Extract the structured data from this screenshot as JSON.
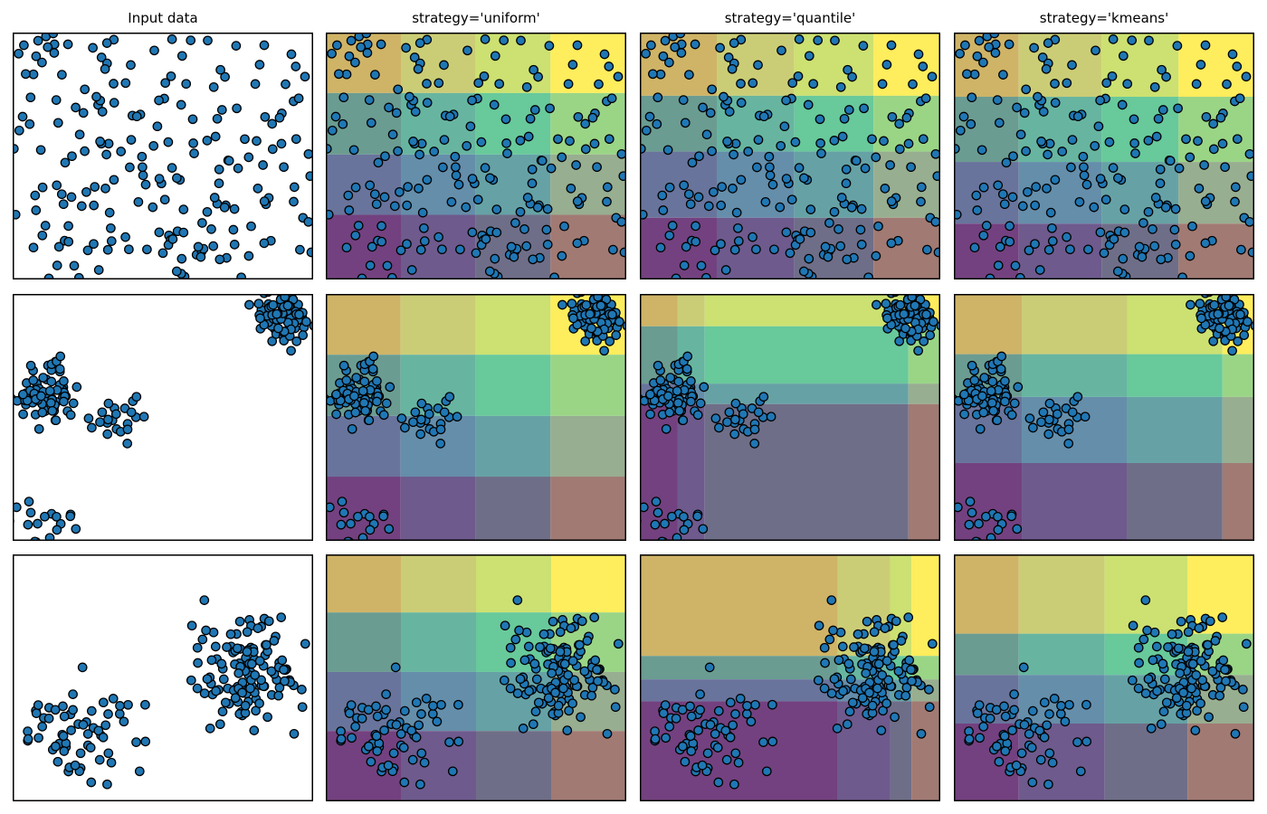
{
  "chart_data": {
    "type": "scatter",
    "description": "Comparison of KBinsDiscretizer binning strategies on three synthetic 2D datasets; each strategy panel shows the same scatter points over a 4x4 grid of discretization bins shaded with two overlapping semi-transparent viridis contour fills (x-feature bins and y-feature bins).",
    "columns": [
      "Input data",
      "strategy='uniform'",
      "strategy='quantile'",
      "strategy='kmeans'"
    ],
    "n_bins_per_feature": 4,
    "colormap": "viridis",
    "coordinates": "All coordinates and bin edges are normalized 0-1 within each panel, origin at top-left (y increases downward).",
    "rows": [
      {
        "name": "uniform random points",
        "points_spec": {
          "type": "uniform",
          "seed": 42,
          "n": 200,
          "x_range": [
            0.0,
            1.0
          ],
          "y_range": [
            0.0,
            1.0
          ]
        },
        "bins": {
          "uniform": {
            "x": [
              0.25,
              0.499,
              0.748
            ],
            "y_top": [
              0.245,
              0.494,
              0.738
            ]
          },
          "quantile": {
            "x": [
              0.256,
              0.514,
              0.778
            ],
            "y_top": [
              0.256,
              0.482,
              0.75
            ]
          },
          "kmeans": {
            "x": [
              0.216,
              0.492,
              0.748
            ],
            "y_top": [
              0.26,
              0.524,
              0.774
            ]
          }
        }
      },
      {
        "name": "three blobs (large top-right, medium left with trail, small bottom-left)",
        "points_spec": {
          "type": "clusters",
          "seed": 1234,
          "clusters": [
            {
              "cx": 0.9,
              "cy": 0.095,
              "sx": 0.055,
              "sy": 0.055,
              "n": 80
            },
            {
              "cx": 0.115,
              "cy": 0.41,
              "sx": 0.05,
              "sy": 0.05,
              "n": 78
            },
            {
              "cx": 0.33,
              "cy": 0.5,
              "sx": 0.05,
              "sy": 0.045,
              "n": 22
            },
            {
              "cx": 0.1,
              "cy": 0.92,
              "sx": 0.05,
              "sy": 0.055,
              "n": 20
            }
          ]
        },
        "bins": {
          "uniform": {
            "x": [
              0.249,
              0.499,
              0.748
            ],
            "y_top": [
              0.246,
              0.494,
              0.74
            ]
          },
          "quantile": {
            "x": [
              0.125,
              0.216,
              0.894
            ],
            "y_top": [
              0.131,
              0.363,
              0.446
            ]
          },
          "kmeans": {
            "x": [
              0.226,
              0.577,
              0.894
            ],
            "y_top": [
              0.244,
              0.417,
              0.685
            ]
          }
        }
      },
      {
        "name": "two blobs (dense right-center, sparse lower-left)",
        "points_spec": {
          "type": "clusters",
          "seed": 99,
          "clusters": [
            {
              "cx": 0.785,
              "cy": 0.455,
              "sx": 0.1,
              "sy": 0.115,
              "n": 130
            },
            {
              "cx": 0.21,
              "cy": 0.72,
              "sx": 0.105,
              "sy": 0.1,
              "n": 65
            }
          ]
        },
        "bins": {
          "uniform": {
            "x": [
              0.25,
              0.5,
              0.75
            ],
            "y_top": [
              0.235,
              0.476,
              0.715
            ]
          },
          "quantile": {
            "x": [
              0.658,
              0.833,
              0.904
            ],
            "y_top": [
              0.411,
              0.506,
              0.595
            ]
          },
          "kmeans": {
            "x": [
              0.216,
              0.502,
              0.778
            ],
            "y_top": [
              0.321,
              0.488,
              0.685
            ]
          }
        }
      }
    ]
  },
  "style": {
    "background": "#ffffff",
    "panel_border_color": "#000000",
    "point_fill": "#1f77b4",
    "point_stroke": "#000000",
    "point_radius": 4.7,
    "point_stroke_width": 1.3,
    "viridis_anchors": [
      "#440154",
      "#31688e",
      "#35b779",
      "#fde725"
    ],
    "blend_white_weight": 0.25,
    "blend_xbin_weight": 0.25,
    "blend_ybin_weight": 0.5
  }
}
